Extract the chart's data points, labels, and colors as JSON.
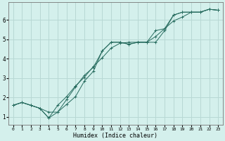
{
  "xlabel": "Humidex (Indice chaleur)",
  "bg_color": "#d4f0ec",
  "grid_color": "#b8d8d4",
  "line_color": "#266b5e",
  "xlim": [
    -0.5,
    23.5
  ],
  "ylim": [
    0.6,
    6.9
  ],
  "xticks": [
    0,
    1,
    2,
    3,
    4,
    5,
    6,
    7,
    8,
    9,
    10,
    11,
    12,
    13,
    14,
    15,
    16,
    17,
    18,
    19,
    20,
    21,
    22,
    23
  ],
  "yticks": [
    1,
    2,
    3,
    4,
    5,
    6
  ],
  "line1_x": [
    0,
    1,
    2,
    3,
    4,
    5,
    6,
    7,
    8,
    9,
    10,
    11,
    12,
    13,
    14,
    15,
    16,
    17,
    18,
    19,
    20,
    21,
    22,
    23
  ],
  "line1_y": [
    1.6,
    1.75,
    1.6,
    1.45,
    1.25,
    1.25,
    1.9,
    2.55,
    3.15,
    3.55,
    4.4,
    4.85,
    4.85,
    4.75,
    4.85,
    4.85,
    5.45,
    5.55,
    6.25,
    6.4,
    6.4,
    6.4,
    6.55,
    6.5
  ],
  "line2_x": [
    0,
    1,
    2,
    3,
    4,
    5,
    6,
    7,
    8,
    9,
    10,
    11,
    12,
    13,
    14,
    15,
    16,
    17,
    18,
    19,
    20,
    21,
    22,
    23
  ],
  "line2_y": [
    1.6,
    1.75,
    1.6,
    1.45,
    0.95,
    1.25,
    1.65,
    2.05,
    2.85,
    3.35,
    4.4,
    4.85,
    4.85,
    4.75,
    4.85,
    4.85,
    4.85,
    5.45,
    6.25,
    6.4,
    6.4,
    6.4,
    6.55,
    6.5
  ],
  "line3_x": [
    0,
    1,
    2,
    3,
    4,
    5,
    6,
    7,
    8,
    9,
    10,
    11,
    12,
    13,
    14,
    15,
    16,
    17,
    18,
    19,
    20,
    21,
    22,
    23
  ],
  "line3_y": [
    1.6,
    1.75,
    1.6,
    1.45,
    0.95,
    1.6,
    2.05,
    2.6,
    3.05,
    3.6,
    4.05,
    4.55,
    4.8,
    4.85,
    4.85,
    4.85,
    5.15,
    5.55,
    5.95,
    6.15,
    6.4,
    6.4,
    6.55,
    6.5
  ]
}
